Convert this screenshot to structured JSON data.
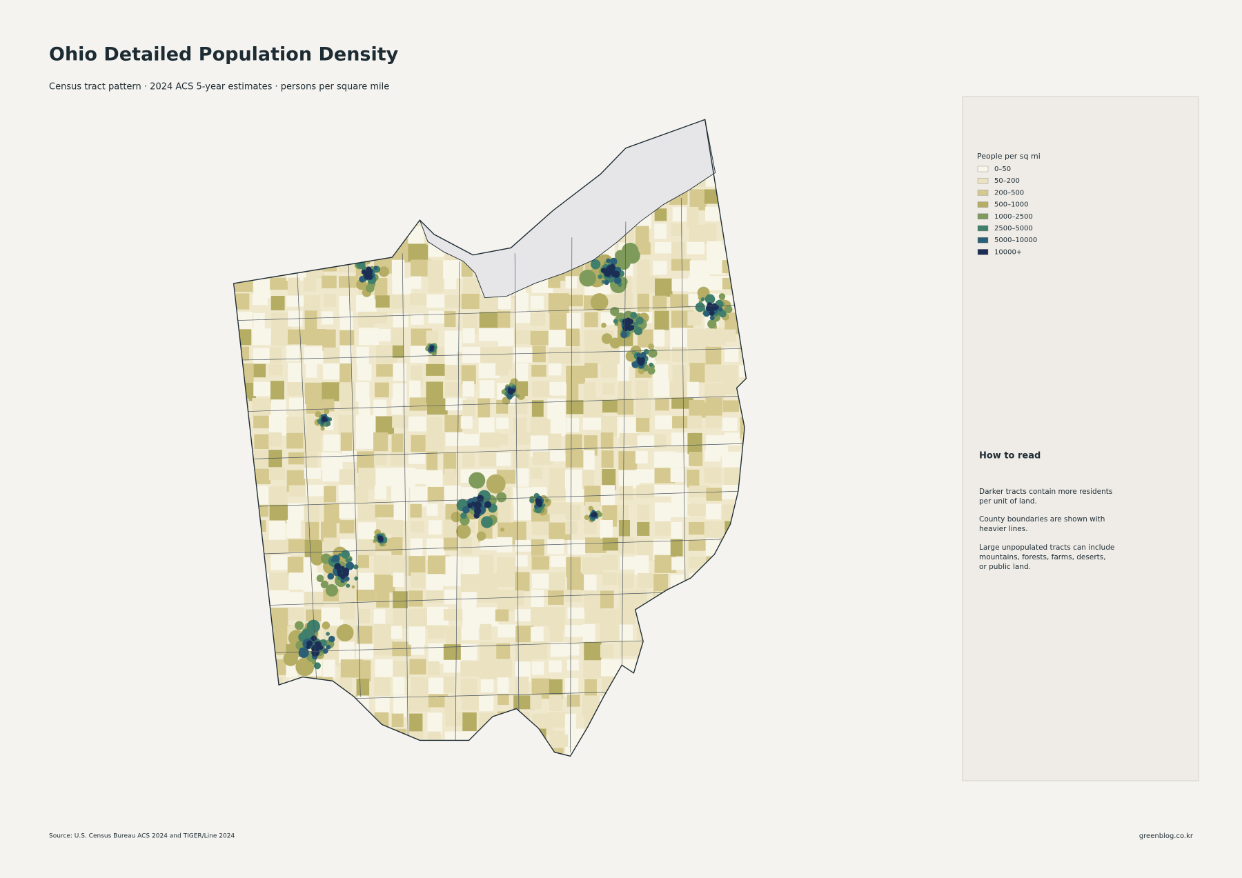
{
  "header": {
    "title": "Ohio Detailed Population Density",
    "subtitle": "Census tract pattern · 2024 ACS 5-year estimates · persons per square mile"
  },
  "legend": {
    "title": "People per sq mi",
    "items": [
      {
        "label": "0–50",
        "color": "#f8f5e9"
      },
      {
        "label": "50–200",
        "color": "#eae2c0"
      },
      {
        "label": "200–500",
        "color": "#d5c98f"
      },
      {
        "label": "500–1000",
        "color": "#b4ad63"
      },
      {
        "label": "1000–2500",
        "color": "#7e9b5b"
      },
      {
        "label": "2500–5000",
        "color": "#3f7f6b"
      },
      {
        "label": "5000–10000",
        "color": "#2a5f78"
      },
      {
        "label": "10000+",
        "color": "#1b2f55"
      }
    ]
  },
  "how_to_read": {
    "title": "How to read",
    "paragraphs": [
      [
        "Darker tracts contain more residents",
        "per unit of land."
      ],
      [
        "County boundaries are shown with",
        "heavier lines."
      ],
      [
        "Large unpopulated tracts can include",
        "mountains, forests, farms, deserts,",
        "or public land."
      ]
    ]
  },
  "footer": {
    "source": "Source: U.S. Census Bureau ACS 2024 and TIGER/Line 2024",
    "credit": "greenblog.co.kr"
  }
}
